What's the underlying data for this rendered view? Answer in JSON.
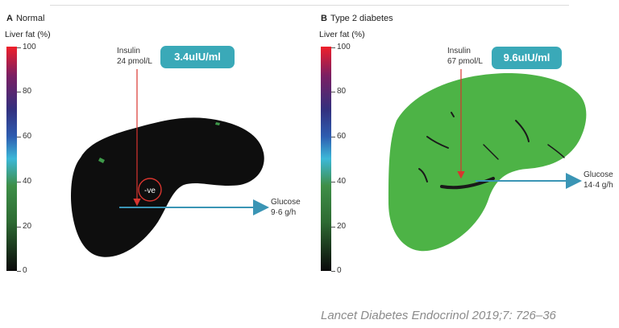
{
  "panel_a": {
    "letter": "A",
    "title": "Normal",
    "ylabel": "Liver fat (%)",
    "ticks": [
      "100",
      "80",
      "60",
      "40",
      "20",
      "0"
    ],
    "insulin_label": "Insulin",
    "insulin_value": "24 pmol/L",
    "bubble": "3.4uIU/ml",
    "marker": "-ve",
    "glucose_label": "Glucose",
    "glucose_value": "9·6 g/h"
  },
  "panel_b": {
    "letter": "B",
    "title": "Type 2 diabetes",
    "ylabel": "Liver fat (%)",
    "ticks": [
      "100",
      "80",
      "60",
      "40",
      "20",
      "0"
    ],
    "insulin_label": "Insulin",
    "insulin_value": "67 pmol/L",
    "bubble": "9.6uIU/ml",
    "glucose_label": "Glucose",
    "glucose_value": "14·4 g/h"
  },
  "citation": "Lancet Diabetes Endocrinol 2019;7: 726–36",
  "colors": {
    "bubble": "#3aa9b8",
    "arrow_blue": "#3a95b5",
    "arrow_red": "#d8352f",
    "liver_normal": "#0e0e0e",
    "liver_diabetes": "#4db346"
  }
}
